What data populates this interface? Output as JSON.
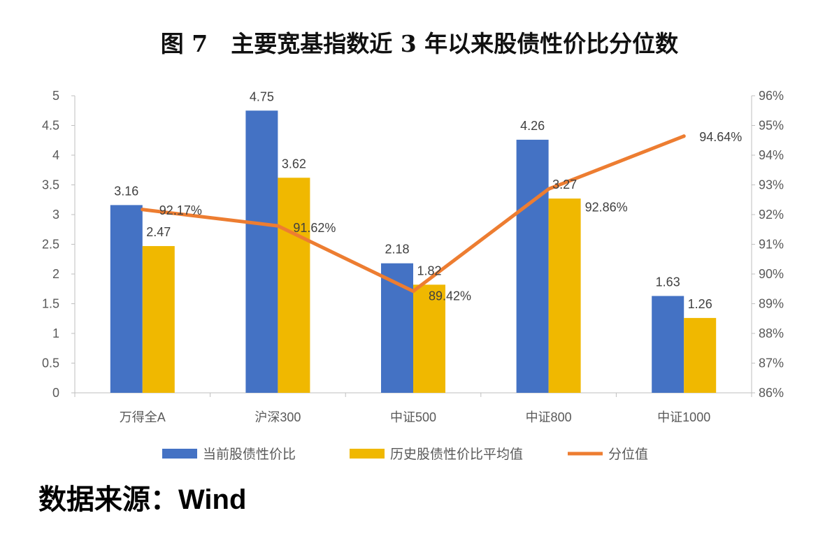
{
  "chart_data": {
    "type": "bar",
    "title": "图 7　主要宽基指数近 3 年以来股债性价比分位数",
    "categories": [
      "万得全A",
      "沪深300",
      "中证500",
      "中证800",
      "中证1000"
    ],
    "series": [
      {
        "name": "当前股债性价比",
        "type": "bar",
        "axis": "left",
        "color": "#4472C4",
        "values": [
          3.16,
          4.75,
          2.18,
          4.26,
          1.63
        ],
        "labels": [
          "3.16",
          "4.75",
          "2.18",
          "4.26",
          "1.63"
        ]
      },
      {
        "name": "历史股债性价比平均值",
        "type": "bar",
        "axis": "left",
        "color": "#F0B800",
        "values": [
          2.47,
          3.62,
          1.82,
          3.27,
          1.26
        ],
        "labels": [
          "2.47",
          "3.62",
          "1.82",
          "3.27",
          "1.26"
        ]
      },
      {
        "name": "分位值",
        "type": "line",
        "axis": "right",
        "color": "#ED7D31",
        "values": [
          92.17,
          91.62,
          89.42,
          92.86,
          94.64
        ],
        "labels": [
          "92.17%",
          "91.62%",
          "89.42%",
          "92.86%",
          "94.64%"
        ]
      }
    ],
    "y_left": {
      "range": [
        0,
        5
      ],
      "ticks": [
        "0",
        "0.5",
        "1",
        "1.5",
        "2",
        "2.5",
        "3",
        "3.5",
        "4",
        "4.5",
        "5"
      ]
    },
    "y_right": {
      "range": [
        86,
        96
      ],
      "ticks": [
        "86%",
        "87%",
        "88%",
        "89%",
        "90%",
        "91%",
        "92%",
        "93%",
        "94%",
        "95%",
        "96%"
      ]
    },
    "grid": false,
    "legend": "bottom"
  },
  "source": "数据来源：Wind"
}
